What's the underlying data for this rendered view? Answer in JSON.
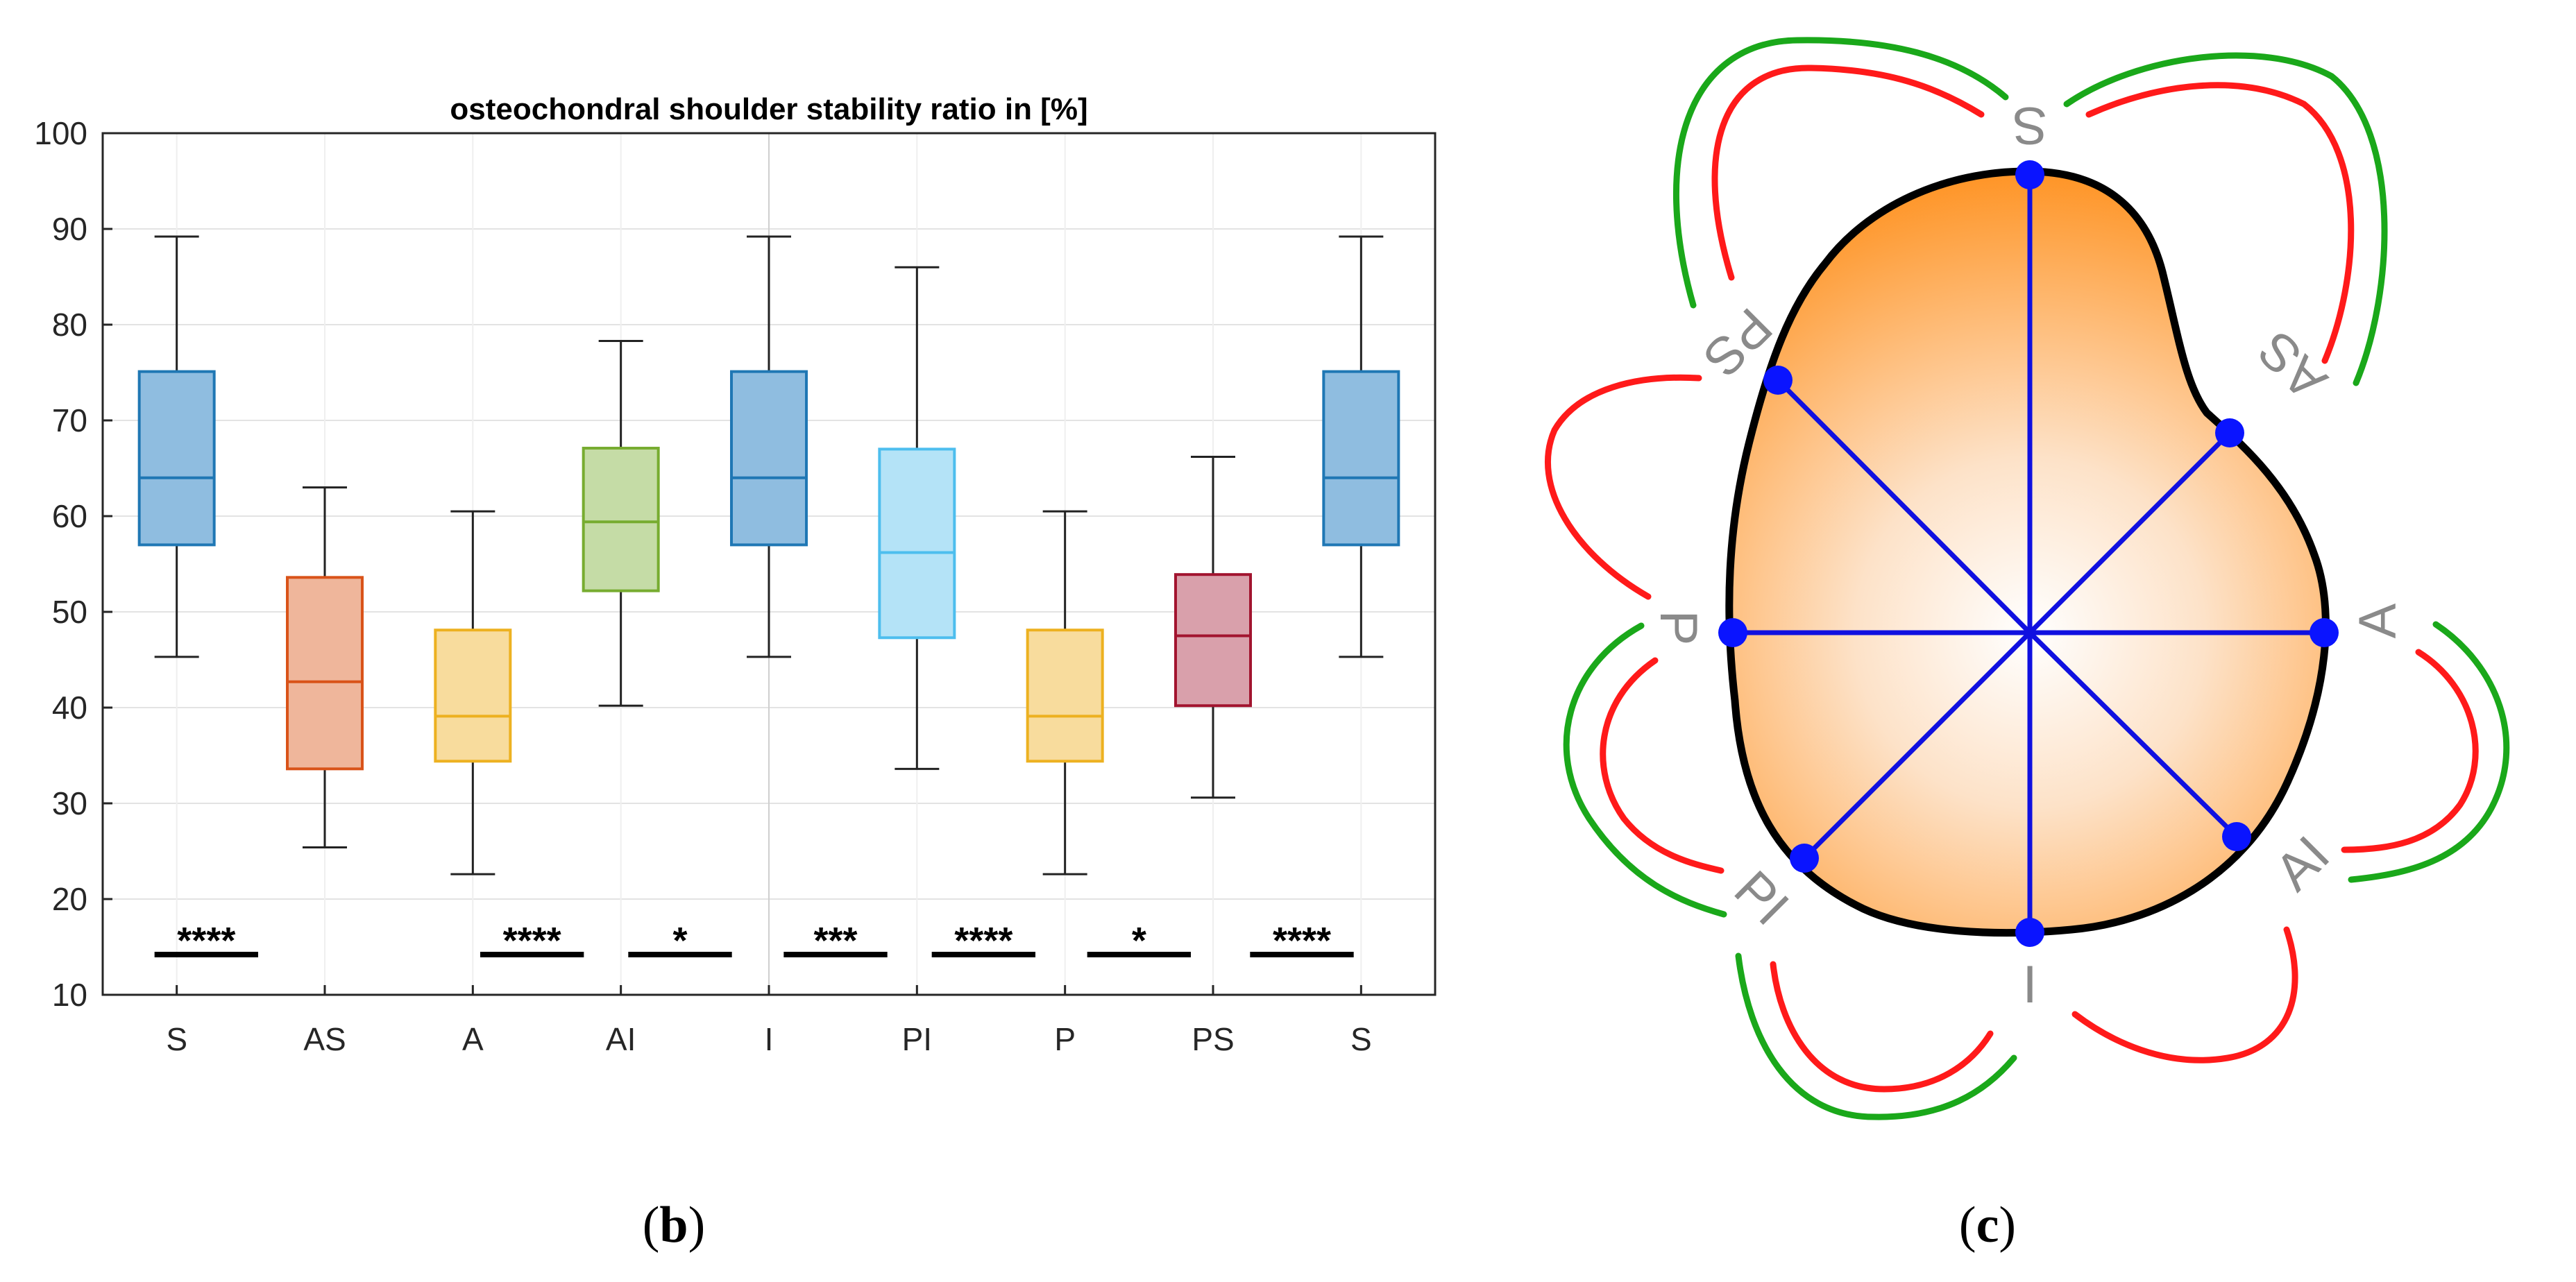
{
  "chart_data": {
    "type": "box",
    "title": "osteochondral shoulder stability ratio in [%]",
    "xlabel": "",
    "ylabel": "",
    "ylim": [
      10,
      100
    ],
    "yticks": [
      10,
      20,
      30,
      40,
      50,
      60,
      70,
      80,
      90,
      100
    ],
    "grid": true,
    "categories": [
      "S",
      "AS",
      "A",
      "AI",
      "I",
      "PI",
      "P",
      "PS",
      "S"
    ],
    "boxes": [
      {
        "label": "S",
        "whisker_low": 45.3,
        "q1": 57.0,
        "median": 64.0,
        "q3": 75.1,
        "whisker_high": 89.2,
        "color": "#1f77b4",
        "fill": "#8fbde0"
      },
      {
        "label": "AS",
        "whisker_low": 25.4,
        "q1": 33.6,
        "median": 42.7,
        "q3": 53.6,
        "whisker_high": 63.0,
        "color": "#d95319",
        "fill": "#efb69b"
      },
      {
        "label": "A",
        "whisker_low": 22.6,
        "q1": 34.4,
        "median": 39.1,
        "q3": 48.1,
        "whisker_high": 60.5,
        "color": "#edb120",
        "fill": "#f8dc9d"
      },
      {
        "label": "AI",
        "whisker_low": 40.2,
        "q1": 52.2,
        "median": 59.4,
        "q3": 67.1,
        "whisker_high": 78.3,
        "color": "#77ac30",
        "fill": "#c5dca6"
      },
      {
        "label": "I",
        "whisker_low": 45.3,
        "q1": 57.0,
        "median": 64.0,
        "q3": 75.1,
        "whisker_high": 89.2,
        "color": "#1f77b4",
        "fill": "#8fbde0"
      },
      {
        "label": "PI",
        "whisker_low": 33.6,
        "q1": 47.3,
        "median": 56.2,
        "q3": 67.0,
        "whisker_high": 86.0,
        "color": "#4dbeee",
        "fill": "#b4e3f7"
      },
      {
        "label": "P",
        "whisker_low": 22.6,
        "q1": 34.4,
        "median": 39.1,
        "q3": 48.1,
        "whisker_high": 60.5,
        "color": "#edb120",
        "fill": "#f8dc9d"
      },
      {
        "label": "PS",
        "whisker_low": 30.6,
        "q1": 40.2,
        "median": 47.5,
        "q3": 53.9,
        "whisker_high": 66.2,
        "color": "#a2142f",
        "fill": "#d9a0ab"
      },
      {
        "label": "S",
        "whisker_low": 45.3,
        "q1": 57.0,
        "median": 64.0,
        "q3": 75.1,
        "whisker_high": 89.2,
        "color": "#1f77b4",
        "fill": "#8fbde0"
      }
    ],
    "significance": [
      {
        "from": 0.85,
        "to": 1.55,
        "label": "****",
        "y": 14.2
      },
      {
        "from": 3.05,
        "to": 3.75,
        "label": "****",
        "y": 14.2
      },
      {
        "from": 4.05,
        "to": 4.75,
        "label": "*",
        "y": 14.2
      },
      {
        "from": 5.1,
        "to": 5.8,
        "label": "***",
        "y": 14.2
      },
      {
        "from": 6.1,
        "to": 6.8,
        "label": "****",
        "y": 14.2
      },
      {
        "from": 7.15,
        "to": 7.85,
        "label": "*",
        "y": 14.2
      },
      {
        "from": 8.25,
        "to": 8.95,
        "label": "****",
        "y": 14.2
      }
    ],
    "divider_at": 5
  },
  "panels": {
    "b": "(b)",
    "c": "(c)"
  },
  "diagram": {
    "labels": {
      "S": "S",
      "AS": "AS",
      "A": "A",
      "AI": "AI",
      "I": "I",
      "PI": "PI",
      "P": "P",
      "PS": "PS"
    },
    "colors": {
      "outline": "#000000",
      "spokes": "#1010e0",
      "points": "#0a14ff",
      "arrow_red": "#ff1a1a",
      "arrow_green": "#1aa81a",
      "fill_dark": "#ff8400",
      "fill_light": "#ffffff",
      "label": "#8a8a8a"
    }
  }
}
